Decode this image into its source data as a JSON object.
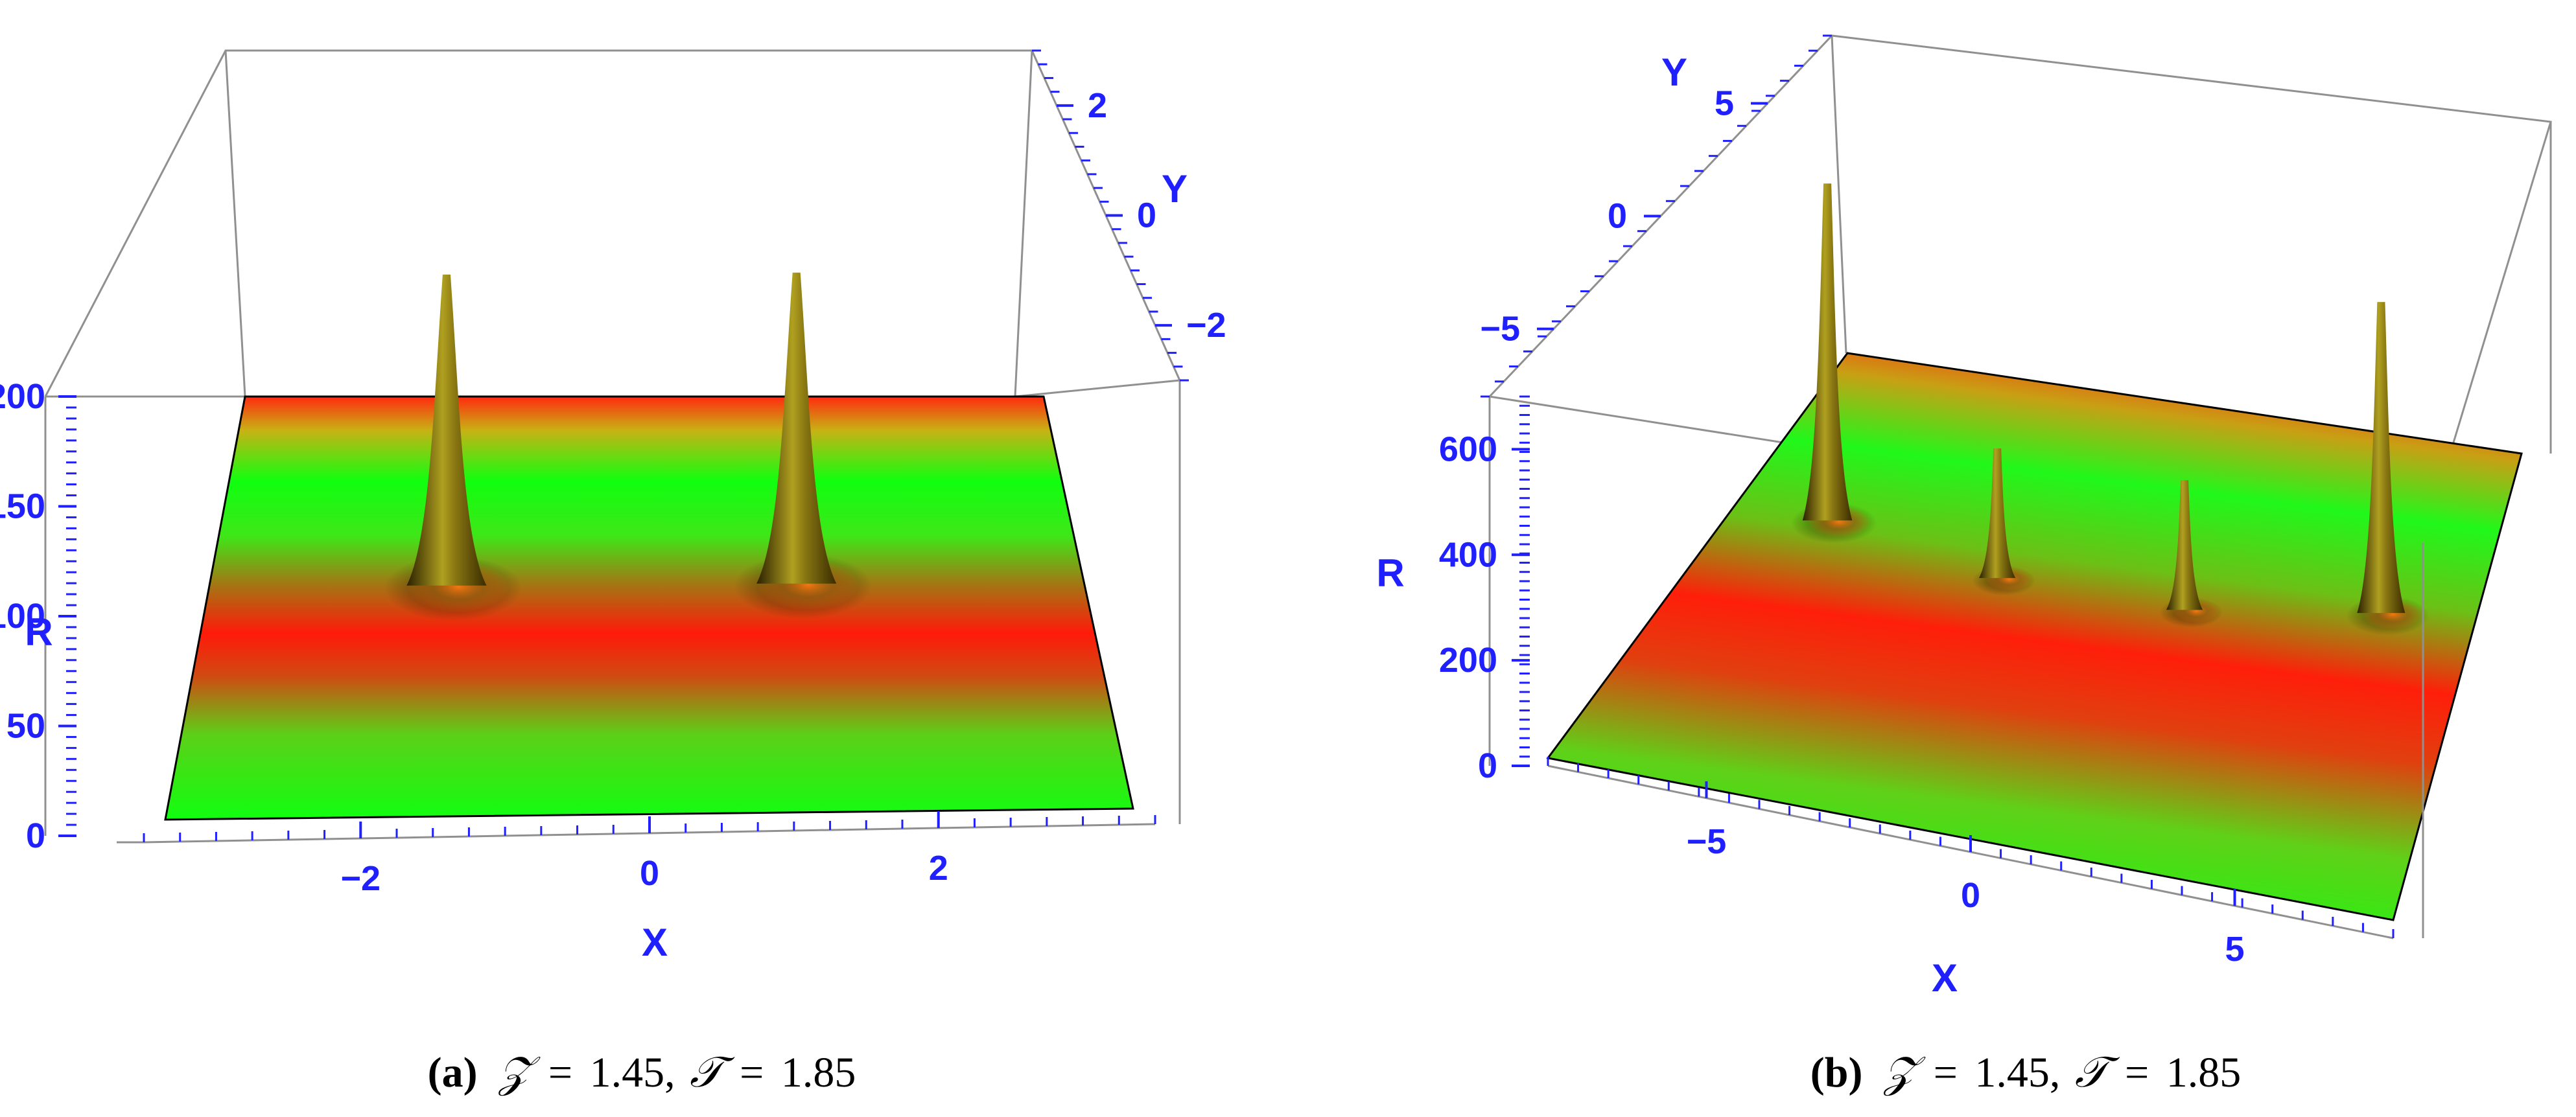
{
  "chart_data": [
    {
      "type": "surface3d",
      "panel": "a",
      "xlabel": "X",
      "ylabel": "Y",
      "zlabel": "R",
      "xlim": [
        -3.5,
        3.5
      ],
      "ylim": [
        -3,
        3
      ],
      "zlim": [
        0,
        200
      ],
      "x_ticks": [
        -2,
        0,
        2
      ],
      "y_ticks": [
        2,
        0,
        -2
      ],
      "z_ticks": [
        0,
        50,
        100,
        150,
        200
      ],
      "peaks": [
        {
          "x": -1.6,
          "y": 0.3,
          "z": 200
        },
        {
          "x": 1.2,
          "y": 0.3,
          "z": 200
        }
      ],
      "caption": {
        "label": "(a)",
        "z_symbol": "𝒵",
        "z_value": "1.45",
        "t_symbol": "𝒯",
        "t_value": "1.85"
      }
    },
    {
      "type": "surface3d",
      "panel": "b",
      "xlabel": "X",
      "ylabel": "Y",
      "zlabel": "R",
      "xlim": [
        -8,
        8
      ],
      "ylim": [
        -8,
        8
      ],
      "zlim": [
        0,
        700
      ],
      "x_ticks": [
        -5,
        0,
        5
      ],
      "y_ticks": [
        5,
        0,
        -5
      ],
      "z_ticks": [
        0,
        200,
        400,
        600
      ],
      "peaks": [
        {
          "x": -6,
          "y": 2,
          "z": 650
        },
        {
          "x": -2,
          "y": 1,
          "z": 250
        },
        {
          "x": 2,
          "y": 1,
          "z": 250
        },
        {
          "x": 6,
          "y": 2,
          "z": 600
        }
      ],
      "caption": {
        "label": "(b)",
        "z_symbol": "𝒵",
        "z_value": "1.45",
        "t_symbol": "𝒯",
        "t_value": "1.85"
      }
    }
  ],
  "colors": {
    "surface_red": "#ff1a0a",
    "surface_green": "#1aff1a",
    "peak_light": "#a59a1e",
    "peak_dark": "#2b2000",
    "axis_text": "#2020ff",
    "box_line": "#909090"
  }
}
